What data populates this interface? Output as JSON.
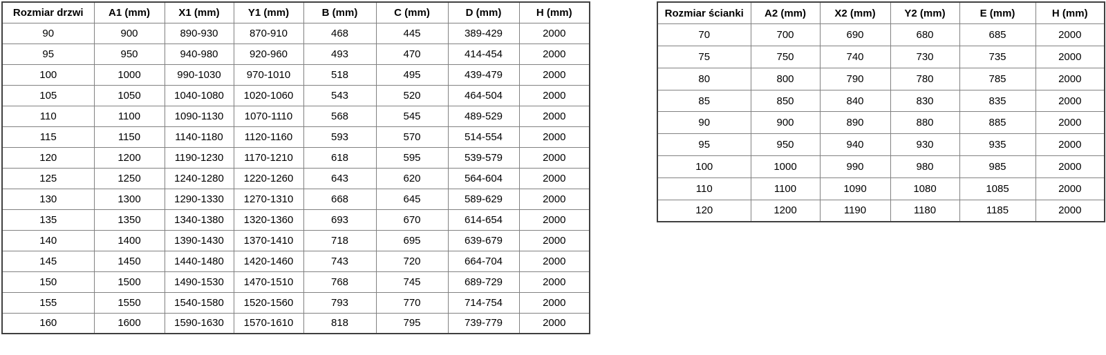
{
  "colors": {
    "background": "#ffffff",
    "text": "#000000",
    "grid_line": "#808080",
    "outer_border": "#3f3f3f"
  },
  "tables": [
    {
      "name": "door-sizes-table",
      "headers": [
        "Rozmiar drzwi",
        "A1 (mm)",
        "X1 (mm)",
        "Y1 (mm)",
        "B (mm)",
        "C (mm)",
        "D (mm)",
        "H (mm)"
      ],
      "rows": [
        [
          "90",
          "900",
          "890-930",
          "870-910",
          "468",
          "445",
          "389-429",
          "2000"
        ],
        [
          "95",
          "950",
          "940-980",
          "920-960",
          "493",
          "470",
          "414-454",
          "2000"
        ],
        [
          "100",
          "1000",
          "990-1030",
          "970-1010",
          "518",
          "495",
          "439-479",
          "2000"
        ],
        [
          "105",
          "1050",
          "1040-1080",
          "1020-1060",
          "543",
          "520",
          "464-504",
          "2000"
        ],
        [
          "110",
          "1100",
          "1090-1130",
          "1070-1110",
          "568",
          "545",
          "489-529",
          "2000"
        ],
        [
          "115",
          "1150",
          "1140-1180",
          "1120-1160",
          "593",
          "570",
          "514-554",
          "2000"
        ],
        [
          "120",
          "1200",
          "1190-1230",
          "1170-1210",
          "618",
          "595",
          "539-579",
          "2000"
        ],
        [
          "125",
          "1250",
          "1240-1280",
          "1220-1260",
          "643",
          "620",
          "564-604",
          "2000"
        ],
        [
          "130",
          "1300",
          "1290-1330",
          "1270-1310",
          "668",
          "645",
          "589-629",
          "2000"
        ],
        [
          "135",
          "1350",
          "1340-1380",
          "1320-1360",
          "693",
          "670",
          "614-654",
          "2000"
        ],
        [
          "140",
          "1400",
          "1390-1430",
          "1370-1410",
          "718",
          "695",
          "639-679",
          "2000"
        ],
        [
          "145",
          "1450",
          "1440-1480",
          "1420-1460",
          "743",
          "720",
          "664-704",
          "2000"
        ],
        [
          "150",
          "1500",
          "1490-1530",
          "1470-1510",
          "768",
          "745",
          "689-729",
          "2000"
        ],
        [
          "155",
          "1550",
          "1540-1580",
          "1520-1560",
          "793",
          "770",
          "714-754",
          "2000"
        ],
        [
          "160",
          "1600",
          "1590-1630",
          "1570-1610",
          "818",
          "795",
          "739-779",
          "2000"
        ]
      ]
    },
    {
      "name": "wall-panel-sizes-table",
      "headers": [
        "Rozmiar ścianki",
        "A2 (mm)",
        "X2 (mm)",
        "Y2 (mm)",
        "E (mm)",
        "H (mm)"
      ],
      "rows": [
        [
          "70",
          "700",
          "690",
          "680",
          "685",
          "2000"
        ],
        [
          "75",
          "750",
          "740",
          "730",
          "735",
          "2000"
        ],
        [
          "80",
          "800",
          "790",
          "780",
          "785",
          "2000"
        ],
        [
          "85",
          "850",
          "840",
          "830",
          "835",
          "2000"
        ],
        [
          "90",
          "900",
          "890",
          "880",
          "885",
          "2000"
        ],
        [
          "95",
          "950",
          "940",
          "930",
          "935",
          "2000"
        ],
        [
          "100",
          "1000",
          "990",
          "980",
          "985",
          "2000"
        ],
        [
          "110",
          "1100",
          "1090",
          "1080",
          "1085",
          "2000"
        ],
        [
          "120",
          "1200",
          "1190",
          "1180",
          "1185",
          "2000"
        ]
      ]
    }
  ]
}
